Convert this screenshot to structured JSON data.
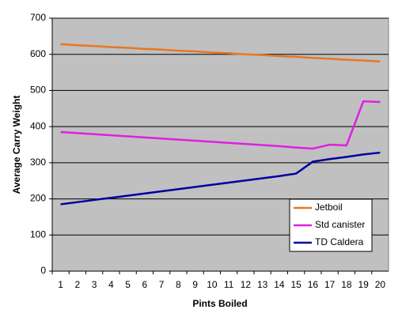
{
  "chart_data": {
    "type": "line",
    "x_label": "Pints Boiled",
    "y_label": "Average Carry Weight",
    "categories": [
      1,
      2,
      3,
      4,
      5,
      6,
      7,
      8,
      9,
      10,
      11,
      12,
      13,
      14,
      15,
      16,
      17,
      18,
      19,
      20
    ],
    "series": [
      {
        "name": "Jetboil",
        "color": "#e87722",
        "values": [
          628,
          625,
          623,
          620,
          618,
          615,
          613,
          610,
          608,
          605,
          603,
          600,
          598,
          595,
          593,
          590,
          588,
          585,
          583,
          580
        ]
      },
      {
        "name": "Std canister",
        "color": "#e020e0",
        "values": [
          385,
          382,
          379,
          376,
          373,
          370,
          367,
          364,
          361,
          358,
          355,
          352,
          349,
          346,
          342,
          339,
          350,
          348,
          470,
          468
        ]
      },
      {
        "name": "TD Caldera",
        "color": "#0000a0",
        "values": [
          185,
          191,
          197,
          203,
          209,
          215,
          221,
          227,
          233,
          239,
          245,
          251,
          257,
          263,
          270,
          303,
          310,
          316,
          323,
          328
        ]
      }
    ],
    "ylim": [
      0,
      700
    ],
    "yticks": [
      0,
      100,
      200,
      300,
      400,
      500,
      600,
      700
    ],
    "grid": true,
    "legend": "lower right",
    "plot_background": "#c0c0c0"
  }
}
